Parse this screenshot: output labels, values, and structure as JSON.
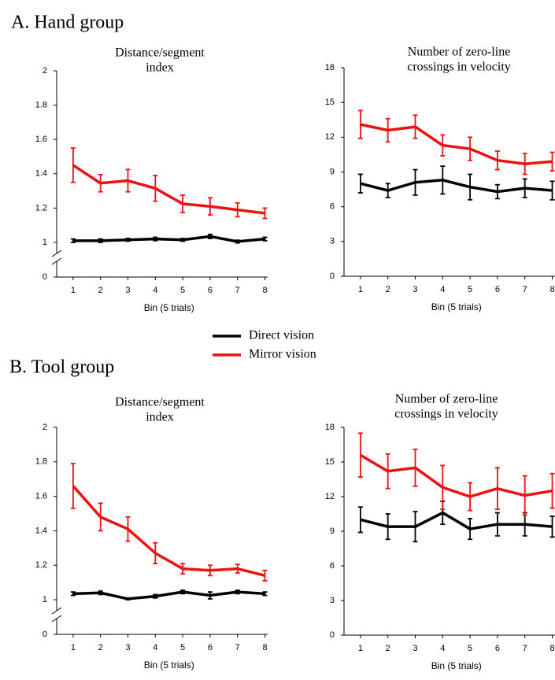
{
  "figure": {
    "panel_titles": [
      "A. Hand group",
      "B. Tool group"
    ]
  },
  "chart_data": [
    {
      "type": "line",
      "title": [
        "Distance/segment",
        "index"
      ],
      "xlabel": "Bin (5 trials)",
      "x": [
        1,
        2,
        3,
        4,
        5,
        6,
        7,
        8
      ],
      "xlim": [
        0.4,
        8.1
      ],
      "xticks": [
        1,
        2,
        3,
        4,
        5,
        6,
        7,
        8
      ],
      "ylim": [
        0,
        2
      ],
      "ybreak": [
        0,
        1
      ],
      "yticks": [
        0,
        1,
        1.2,
        1.4,
        1.6,
        1.8,
        2
      ],
      "series": [
        {
          "name": "Direct vision",
          "color": "#000000",
          "values": [
            1.01,
            1.01,
            1.015,
            1.02,
            1.015,
            1.035,
            1.005,
            1.02
          ],
          "errors": [
            0.01,
            0.01,
            0.008,
            0.01,
            0.008,
            0.012,
            0.008,
            0.01
          ]
        },
        {
          "name": "Mirror vision",
          "color": "#ee1111",
          "values": [
            1.45,
            1.345,
            1.36,
            1.315,
            1.225,
            1.21,
            1.19,
            1.17
          ],
          "errors": [
            0.1,
            0.05,
            0.065,
            0.075,
            0.05,
            0.05,
            0.04,
            0.03
          ]
        }
      ]
    },
    {
      "type": "line",
      "title": [
        "Number of zero-line",
        "crossings in velocity"
      ],
      "xlabel": "Bin (5 trials)",
      "x": [
        1,
        2,
        3,
        4,
        5,
        6,
        7,
        8
      ],
      "xlim": [
        0.4,
        8.1
      ],
      "xticks": [
        1,
        2,
        3,
        4,
        5,
        6,
        7,
        8
      ],
      "ylim": [
        0,
        18
      ],
      "yticks": [
        0,
        3,
        6,
        9,
        12,
        15,
        18
      ],
      "series": [
        {
          "name": "Direct vision",
          "color": "#000000",
          "values": [
            8.0,
            7.4,
            8.1,
            8.3,
            7.7,
            7.3,
            7.6,
            7.4
          ],
          "errors": [
            0.8,
            0.6,
            1.1,
            1.2,
            1.1,
            0.6,
            0.8,
            0.8
          ]
        },
        {
          "name": "Mirror vision",
          "color": "#ee1111",
          "values": [
            13.1,
            12.6,
            12.9,
            11.3,
            11.0,
            10.0,
            9.7,
            9.9
          ],
          "errors": [
            1.2,
            1.0,
            1.0,
            0.9,
            1.0,
            0.8,
            0.9,
            0.8
          ]
        }
      ]
    },
    {
      "type": "line",
      "title": [
        "Distance/segment",
        "index"
      ],
      "xlabel": "Bin (5 trials)",
      "x": [
        1,
        2,
        3,
        4,
        5,
        6,
        7,
        8
      ],
      "xlim": [
        0.4,
        8.1
      ],
      "xticks": [
        1,
        2,
        3,
        4,
        5,
        6,
        7,
        8
      ],
      "ylim": [
        0,
        2
      ],
      "ybreak": [
        0,
        1
      ],
      "yticks": [
        0,
        1,
        1.2,
        1.4,
        1.6,
        1.8,
        2
      ],
      "series": [
        {
          "name": "Direct vision",
          "color": "#000000",
          "values": [
            1.035,
            1.04,
            1.005,
            1.02,
            1.045,
            1.025,
            1.045,
            1.035
          ],
          "errors": [
            0.01,
            0.01,
            0.005,
            0.01,
            0.01,
            0.02,
            0.01,
            0.01
          ]
        },
        {
          "name": "Mirror vision",
          "color": "#ee1111",
          "values": [
            1.66,
            1.48,
            1.41,
            1.27,
            1.18,
            1.17,
            1.18,
            1.14
          ],
          "errors": [
            0.13,
            0.08,
            0.07,
            0.06,
            0.03,
            0.03,
            0.025,
            0.03
          ]
        }
      ]
    },
    {
      "type": "line",
      "title": [
        "Number of zero-line",
        "crossings in velocity"
      ],
      "xlabel": "Bin (5 trials)",
      "x": [
        1,
        2,
        3,
        4,
        5,
        6,
        7,
        8
      ],
      "xlim": [
        0.4,
        8.1
      ],
      "xticks": [
        1,
        2,
        3,
        4,
        5,
        6,
        7,
        8
      ],
      "ylim": [
        0,
        18
      ],
      "yticks": [
        0,
        3,
        6,
        9,
        12,
        15,
        18
      ],
      "series": [
        {
          "name": "Direct vision",
          "color": "#000000",
          "values": [
            10.0,
            9.4,
            9.4,
            10.6,
            9.2,
            9.6,
            9.6,
            9.4
          ],
          "errors": [
            1.1,
            1.1,
            1.3,
            1.0,
            0.9,
            1.0,
            1.0,
            0.9
          ]
        },
        {
          "name": "Mirror vision",
          "color": "#ee1111",
          "values": [
            15.6,
            14.2,
            14.5,
            12.8,
            12.0,
            12.7,
            12.1,
            12.5
          ],
          "errors": [
            1.9,
            1.5,
            1.6,
            1.9,
            1.2,
            1.8,
            1.7,
            1.5
          ]
        }
      ]
    }
  ]
}
